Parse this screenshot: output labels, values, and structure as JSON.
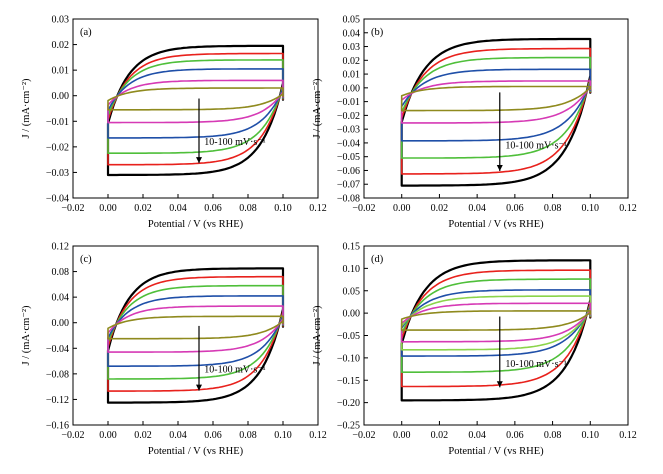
{
  "chart_data": [
    {
      "type": "line",
      "panel_label": "(a)",
      "xlabel": "Potential / V (vs RHE)",
      "ylabel": "J / (mA·cm⁻²)",
      "xlim": [
        -0.02,
        0.12
      ],
      "ylim": [
        -0.04,
        0.03
      ],
      "x_ticks": [
        "−0.02",
        "0.00",
        "0.02",
        "0.04",
        "0.06",
        "0.08",
        "0.10",
        "0.12"
      ],
      "y_ticks": [
        "−0.04",
        "−0.03",
        "−0.02",
        "−0.01",
        "0.00",
        "0.01",
        "0.02",
        "0.03"
      ],
      "annotation": "10-100 mV·s⁻¹",
      "series": [
        {
          "color": "#000000",
          "upper": 0.0195,
          "lower": -0.031
        },
        {
          "color": "#e8211c",
          "upper": 0.0165,
          "lower": -0.027
        },
        {
          "color": "#4fbf3a",
          "upper": 0.014,
          "lower": -0.0225
        },
        {
          "color": "#1f4fa8",
          "upper": 0.0105,
          "lower": -0.0165
        },
        {
          "color": "#d63ab5",
          "upper": 0.006,
          "lower": -0.0105
        },
        {
          "color": "#8f8a1e",
          "upper": 0.003,
          "lower": -0.0055
        }
      ]
    },
    {
      "type": "line",
      "panel_label": "(b)",
      "xlabel": "Potential / V (vs RHE)",
      "ylabel": "J / (mA·cm⁻²)",
      "xlim": [
        -0.02,
        0.12
      ],
      "ylim": [
        -0.08,
        0.05
      ],
      "x_ticks": [
        "−0.02",
        "0.00",
        "0.02",
        "0.04",
        "0.06",
        "0.08",
        "0.10",
        "0.12"
      ],
      "y_ticks": [
        "−0.08",
        "−0.07",
        "−0.06",
        "−0.05",
        "−0.04",
        "−0.03",
        "−0.02",
        "−0.01",
        "0.00",
        "0.01",
        "0.02",
        "0.03",
        "0.04",
        "0.05"
      ],
      "annotation": "10-100 mV·s⁻¹",
      "series": [
        {
          "color": "#000000",
          "upper": 0.0355,
          "lower": -0.071
        },
        {
          "color": "#e8211c",
          "upper": 0.0285,
          "lower": -0.0625
        },
        {
          "color": "#4fbf3a",
          "upper": 0.022,
          "lower": -0.051
        },
        {
          "color": "#1f4fa8",
          "upper": 0.0135,
          "lower": -0.0385
        },
        {
          "color": "#d63ab5",
          "upper": 0.005,
          "lower": -0.0255
        },
        {
          "color": "#8f8a1e",
          "upper": 0.001,
          "lower": -0.0165
        }
      ]
    },
    {
      "type": "line",
      "panel_label": "(c)",
      "xlabel": "Potential / V (vs RHE)",
      "ylabel": "J / (mA·cm⁻²)",
      "xlim": [
        -0.02,
        0.12
      ],
      "ylim": [
        -0.16,
        0.12
      ],
      "x_ticks": [
        "−0.02",
        "0.00",
        "0.02",
        "0.04",
        "0.06",
        "0.08",
        "0.10",
        "0.12"
      ],
      "y_ticks": [
        "−0.16",
        "−0.12",
        "−0.08",
        "−0.04",
        "0.00",
        "0.04",
        "0.08",
        "0.12"
      ],
      "annotation": "10-100 mV·s⁻¹",
      "series": [
        {
          "color": "#000000",
          "upper": 0.085,
          "lower": -0.125
        },
        {
          "color": "#e8211c",
          "upper": 0.072,
          "lower": -0.107
        },
        {
          "color": "#4fbf3a",
          "upper": 0.058,
          "lower": -0.088
        },
        {
          "color": "#1f4fa8",
          "upper": 0.042,
          "lower": -0.068
        },
        {
          "color": "#d63ab5",
          "upper": 0.026,
          "lower": -0.046
        },
        {
          "color": "#8f8a1e",
          "upper": 0.01,
          "lower": -0.025
        }
      ]
    },
    {
      "type": "line",
      "panel_label": "(d)",
      "xlabel": "Potential / V (vs RHE)",
      "ylabel": "J / (mA·cm⁻²)",
      "xlim": [
        -0.02,
        0.12
      ],
      "ylim": [
        -0.25,
        0.15
      ],
      "x_ticks": [
        "−0.02",
        "0.00",
        "0.02",
        "0.04",
        "0.06",
        "0.08",
        "0.10",
        "0.12"
      ],
      "y_ticks": [
        "−0.25",
        "−0.20",
        "−0.15",
        "−0.10",
        "−0.05",
        "0.00",
        "0.05",
        "0.10",
        "0.15"
      ],
      "annotation": "10-100 mV·s⁻¹",
      "series": [
        {
          "color": "#000000",
          "upper": 0.118,
          "lower": -0.195
        },
        {
          "color": "#e8211c",
          "upper": 0.096,
          "lower": -0.164
        },
        {
          "color": "#4fbf3a",
          "upper": 0.076,
          "lower": -0.132
        },
        {
          "color": "#1f4fa8",
          "upper": 0.052,
          "lower": -0.096
        },
        {
          "color": "#8bd44a",
          "upper": 0.038,
          "lower": -0.082
        },
        {
          "color": "#d63ab5",
          "upper": 0.022,
          "lower": -0.064
        },
        {
          "color": "#8f8a1e",
          "upper": 0.005,
          "lower": -0.038
        }
      ]
    }
  ]
}
